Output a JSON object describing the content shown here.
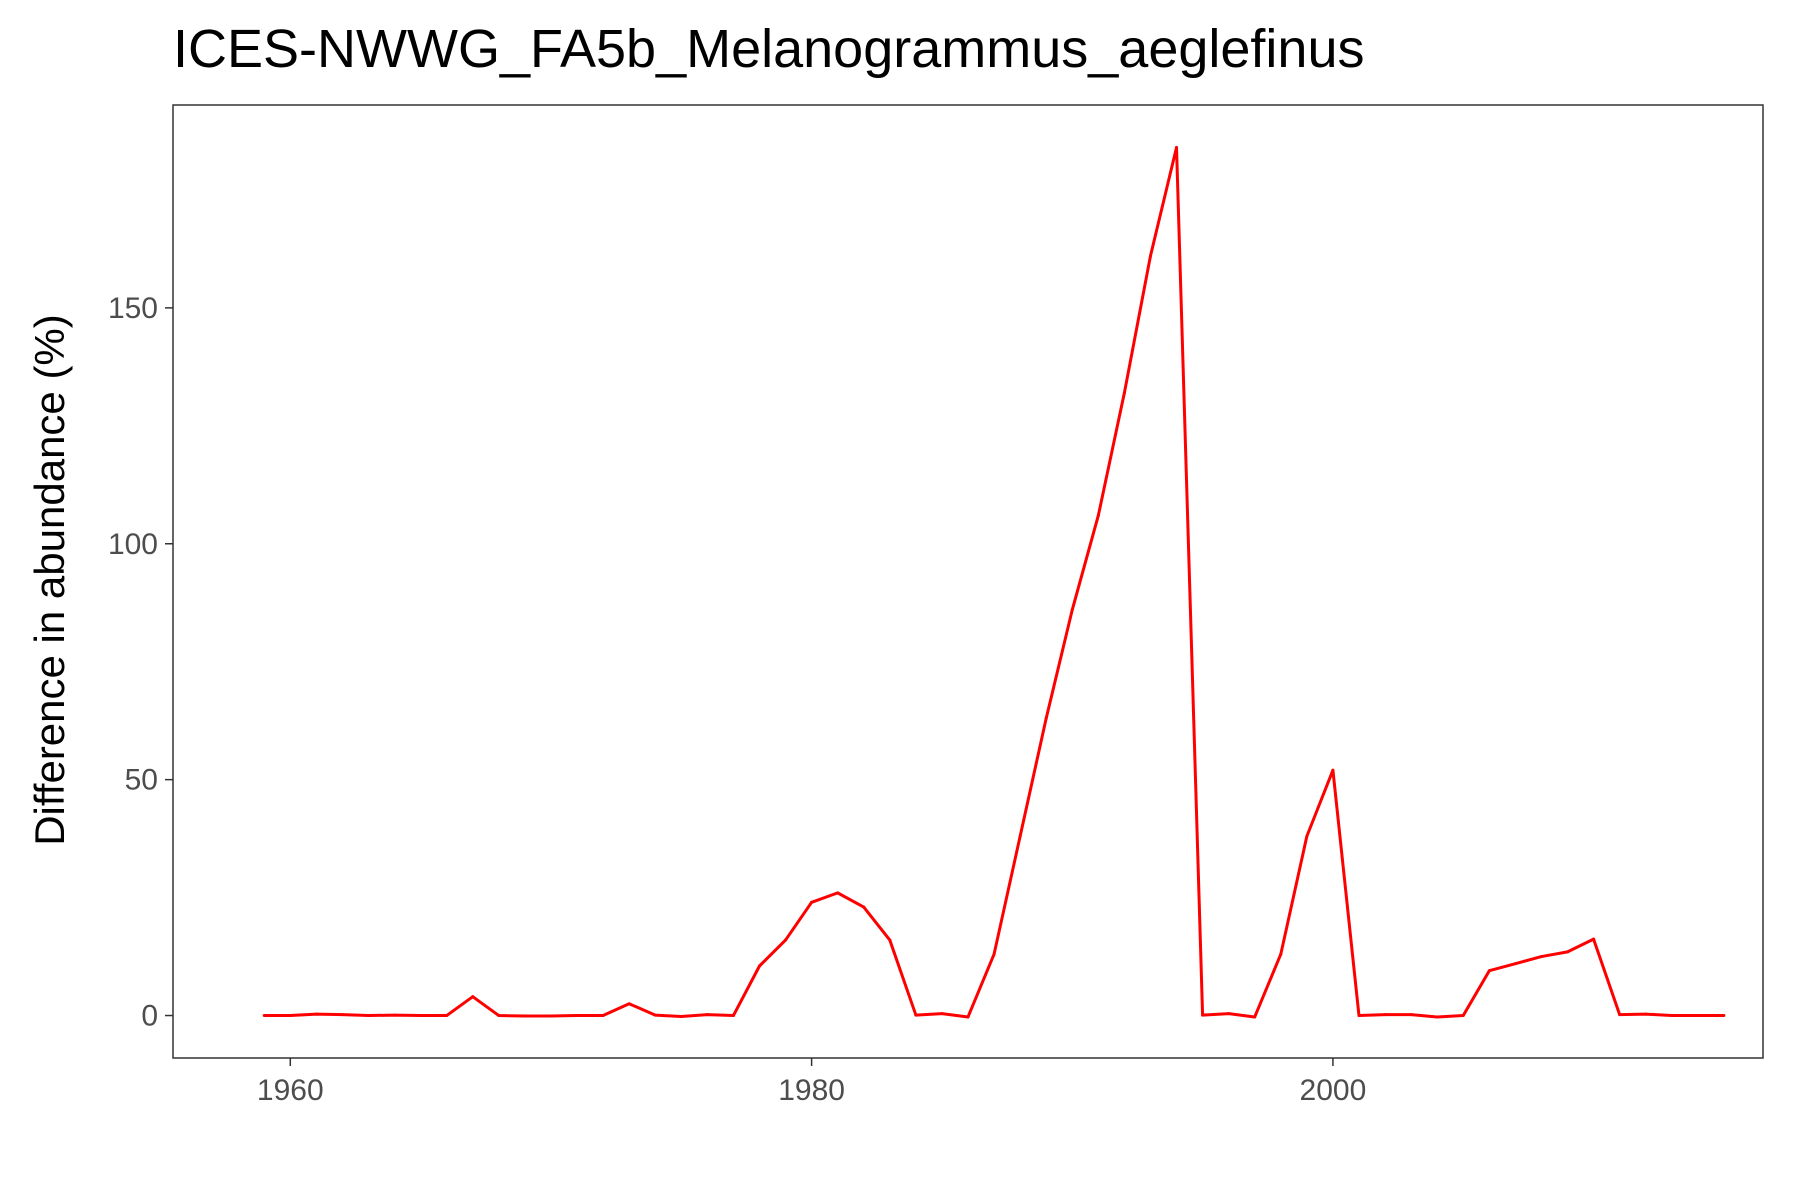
{
  "chart_data": {
    "type": "line",
    "title": "ICES-NWWG_FA5b_Melanogrammus_aeglefinus",
    "xlabel": "",
    "ylabel": "Difference in abundance (%)",
    "xlim": [
      1955.5,
      2016.5
    ],
    "ylim": [
      -9,
      193
    ],
    "xticks": [
      1960,
      1980,
      2000
    ],
    "yticks": [
      0,
      50,
      100,
      150
    ],
    "grid": false,
    "line_color": "#ff0000",
    "series": [
      {
        "x": [
          1959,
          1960,
          1961,
          1962,
          1963,
          1964,
          1965,
          1966,
          1967,
          1968,
          1969,
          1970,
          1971,
          1972,
          1973,
          1974,
          1975,
          1976,
          1977,
          1978,
          1979,
          1980,
          1981,
          1982,
          1983,
          1984,
          1985,
          1986,
          1987,
          1988,
          1989,
          1990,
          1991,
          1992,
          1993,
          1994,
          1995,
          1996,
          1997,
          1998,
          1999,
          2000,
          2001,
          2002,
          2003,
          2004,
          2005,
          2006,
          2007,
          2008,
          2009,
          2010,
          2011,
          2012,
          2013,
          2014,
          2015
        ],
        "values": [
          0,
          0,
          0.3,
          0.2,
          0,
          0.1,
          0,
          0,
          4,
          0,
          -0.1,
          -0.1,
          0,
          0,
          2.5,
          0.1,
          -0.2,
          0.2,
          0,
          10.5,
          16,
          24,
          26,
          23,
          16,
          0.1,
          0.4,
          -0.3,
          13,
          38,
          63,
          86,
          106,
          132,
          161,
          184,
          0.1,
          0.4,
          -0.3,
          13,
          38,
          52,
          0,
          0.2,
          0.2,
          -0.3,
          0,
          9.5,
          11,
          12.5,
          13.5,
          16.2,
          0.2,
          0.3,
          0,
          0,
          0
        ]
      }
    ]
  }
}
